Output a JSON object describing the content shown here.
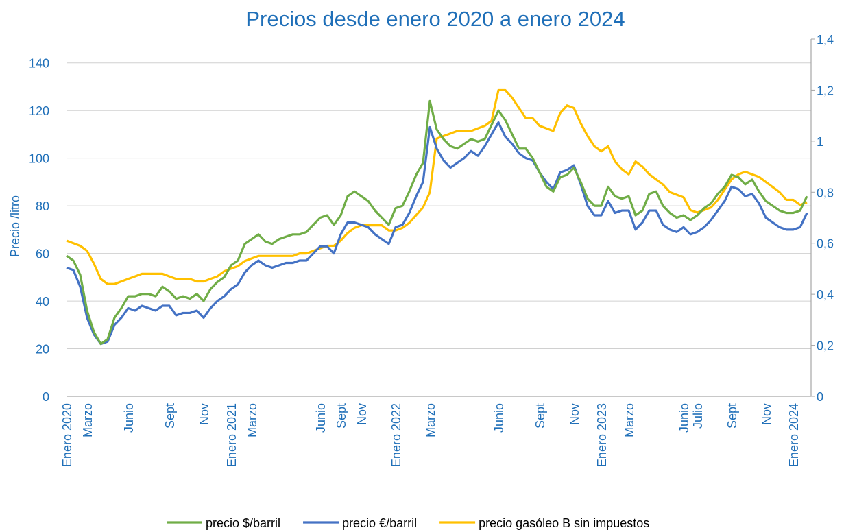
{
  "chart_data": {
    "type": "line",
    "title": "Precios desde enero 2020 a enero 2024",
    "y_label": "Precio /litro",
    "categories": [
      "Enero 2020",
      null,
      null,
      "Marzo",
      null,
      null,
      null,
      null,
      null,
      "Junio",
      null,
      null,
      null,
      null,
      null,
      "Sept",
      null,
      null,
      null,
      null,
      "Nov",
      null,
      null,
      null,
      "Enero 2021",
      null,
      null,
      "Marzo",
      null,
      null,
      null,
      null,
      null,
      null,
      null,
      null,
      null,
      "Junio",
      null,
      null,
      "Sept",
      null,
      null,
      "Nov",
      null,
      null,
      null,
      null,
      "Enero 2022",
      null,
      null,
      null,
      null,
      "Marzo",
      null,
      null,
      null,
      null,
      null,
      null,
      null,
      null,
      null,
      "Junio",
      null,
      null,
      null,
      null,
      null,
      "Sept",
      null,
      null,
      null,
      null,
      "Nov",
      null,
      null,
      null,
      "Enero 2023",
      null,
      null,
      null,
      "Marzo",
      null,
      null,
      null,
      null,
      null,
      null,
      null,
      "Junio",
      null,
      "Julio",
      null,
      null,
      null,
      null,
      "Sept",
      null,
      null,
      null,
      null,
      "Nov",
      null,
      null,
      null,
      "Enero 2024",
      null,
      null
    ],
    "series": [
      {
        "name": "precio $/barril",
        "color": "#70ad47",
        "values": [
          59,
          57,
          51,
          36,
          27,
          22,
          24,
          33,
          37,
          42,
          42,
          43,
          43,
          42,
          46,
          44,
          41,
          42,
          41,
          43,
          40,
          45,
          48,
          50,
          55,
          57,
          64,
          66,
          68,
          65,
          64,
          66,
          67,
          68,
          68,
          69,
          72,
          75,
          76,
          72,
          76,
          84,
          86,
          84,
          82,
          78,
          75,
          72,
          79,
          80,
          86,
          93,
          98,
          124,
          112,
          108,
          105,
          104,
          106,
          108,
          107,
          108,
          114,
          120,
          116,
          110,
          104,
          104,
          100,
          94,
          88,
          86,
          92,
          93,
          96,
          90,
          83,
          80,
          80,
          88,
          84,
          83,
          84,
          76,
          78,
          85,
          86,
          80,
          77,
          75,
          76,
          74,
          76,
          79,
          81,
          85,
          88,
          93,
          92,
          89,
          91,
          86,
          82,
          80,
          78,
          77,
          77,
          78,
          84
        ]
      },
      {
        "name": "precio €/barril",
        "color": "#4472c4",
        "values": [
          54,
          53,
          46,
          33,
          26,
          22,
          23,
          30,
          33,
          37,
          36,
          38,
          37,
          36,
          38,
          38,
          34,
          35,
          35,
          36,
          33,
          37,
          40,
          42,
          45,
          47,
          52,
          55,
          57,
          55,
          54,
          55,
          56,
          56,
          57,
          57,
          60,
          63,
          63,
          60,
          68,
          73,
          73,
          72,
          71,
          68,
          66,
          64,
          71,
          72,
          77,
          84,
          90,
          113,
          104,
          99,
          96,
          98,
          100,
          103,
          101,
          105,
          110,
          115,
          109,
          106,
          102,
          100,
          99,
          94,
          90,
          87,
          94,
          95,
          97,
          89,
          80,
          76,
          76,
          82,
          77,
          78,
          78,
          70,
          73,
          78,
          78,
          72,
          70,
          69,
          71,
          68,
          69,
          71,
          74,
          78,
          82,
          88,
          87,
          84,
          85,
          81,
          75,
          73,
          71,
          70,
          70,
          71,
          77
        ]
      },
      {
        "name": "precio gasóleo B sin impuestos",
        "color": "#ffc000",
        "axis": "y2",
        "values": [
          0.61,
          0.6,
          0.59,
          0.57,
          0.52,
          0.46,
          0.44,
          0.44,
          0.45,
          0.46,
          0.47,
          0.48,
          0.48,
          0.48,
          0.48,
          0.47,
          0.46,
          0.46,
          0.46,
          0.45,
          0.45,
          0.46,
          0.47,
          0.49,
          0.5,
          0.51,
          0.53,
          0.54,
          0.55,
          0.55,
          0.55,
          0.55,
          0.55,
          0.55,
          0.56,
          0.56,
          0.57,
          0.58,
          0.59,
          0.59,
          0.61,
          0.64,
          0.66,
          0.67,
          0.67,
          0.67,
          0.67,
          0.65,
          0.65,
          0.66,
          0.68,
          0.71,
          0.74,
          0.8,
          1.01,
          1.02,
          1.03,
          1.04,
          1.04,
          1.04,
          1.05,
          1.06,
          1.08,
          1.2,
          1.2,
          1.17,
          1.13,
          1.09,
          1.09,
          1.06,
          1.05,
          1.04,
          1.11,
          1.14,
          1.13,
          1.07,
          1.02,
          0.98,
          0.96,
          0.98,
          0.92,
          0.89,
          0.87,
          0.92,
          0.9,
          0.87,
          0.85,
          0.83,
          0.8,
          0.79,
          0.78,
          0.73,
          0.72,
          0.73,
          0.74,
          0.77,
          0.81,
          0.85,
          0.87,
          0.88,
          0.87,
          0.86,
          0.84,
          0.82,
          0.8,
          0.77,
          0.77,
          0.75,
          0.76
        ]
      }
    ],
    "ylim": [
      0,
      150
    ],
    "yticks": [
      0,
      20,
      40,
      60,
      80,
      100,
      120,
      140
    ],
    "y2lim": [
      0,
      1.4
    ],
    "y2ticks": [
      0,
      {
        "value": 0.2,
        "label": "0,2"
      },
      {
        "value": 0.4,
        "label": "0,4"
      },
      {
        "value": 0.6,
        "label": "0,6"
      },
      {
        "value": 0.8,
        "label": "0,8"
      },
      1,
      {
        "value": 1.2,
        "label": "1,2"
      },
      {
        "value": 1.4,
        "label": "1,4"
      }
    ],
    "grid": true,
    "legend": "bottom"
  }
}
